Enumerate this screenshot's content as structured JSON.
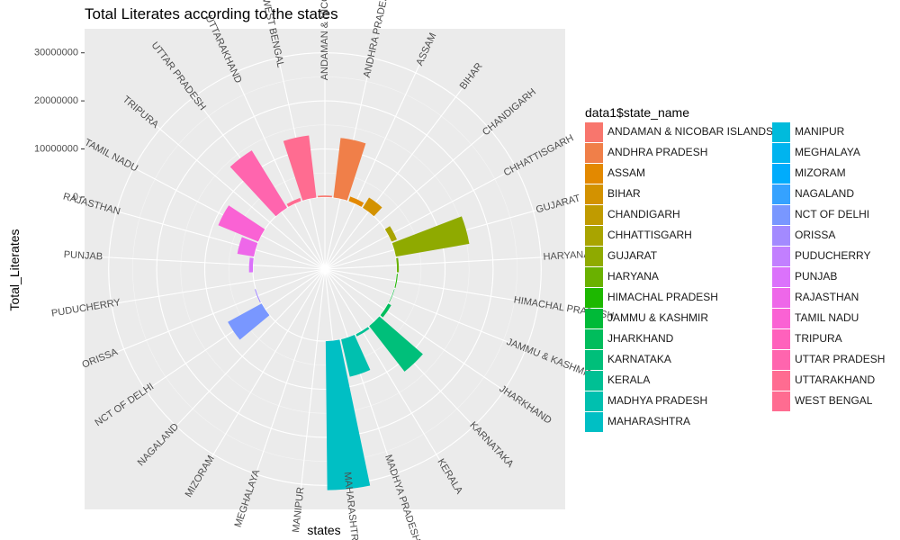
{
  "chart_data": {
    "type": "bar",
    "coord": "polar",
    "title": "Total Literates according to the states",
    "xlabel": "states",
    "ylabel": "Total_Literates",
    "ylim": [
      -15000000,
      35000000
    ],
    "y_ticks": [
      0,
      10000000,
      20000000,
      30000000
    ],
    "y_tick_labels": [
      "0",
      "10000000",
      "20000000",
      "30000000"
    ],
    "categories": [
      "ANDAMAN & NICOBAR ISLANDS",
      "ANDHRA PRADESH",
      "ASSAM",
      "BIHAR",
      "CHANDIGARH",
      "CHHATTISGARH",
      "GUJARAT",
      "HARYANA",
      "HIMACHAL PRADESH",
      "JAMMU & KASHMIR",
      "JHARKHAND",
      "KARNATAKA",
      "KERALA",
      "MADHYA PRADESH",
      "MAHARASHTRA",
      "MANIPUR",
      "MEGHALAYA",
      "MIZORAM",
      "NAGALAND",
      "NCT OF DELHI",
      "ORISSA",
      "PUDUCHERRY",
      "PUNJAB",
      "RAJASTHAN",
      "TAMIL NADU",
      "TRIPURA",
      "UTTAR PRADESH",
      "UTTARAKHAND",
      "WEST BENGAL"
    ],
    "axis_labels": [
      "ANDAMAN & NICOBAR",
      "ANDHRA PRADESH",
      "ASSAM",
      "BIHAR",
      "CHANDIGARH",
      "CHHATTISGARH",
      "GUJARAT",
      "HARYANA",
      "HIMACHAL PRADESH",
      "JAMMU & KASHMIR",
      "JHARKHAND",
      "KARNATAKA",
      "KERALA",
      "MADHYA PRADESH",
      "MAHARASHTRA",
      "MANIPUR",
      "MEGHALAYA",
      "MIZORAM",
      "NAGALAND",
      "NCT OF DELHI",
      "ORISSA",
      "PUDUCHERRY",
      "PUNJAB",
      "RAJASTHAN",
      "TAMIL NADU",
      "TRIPURA",
      "UTTAR PRADESH",
      "UTTARAKHAND",
      "WEST BENGAL"
    ],
    "values": [
      300000,
      12500000,
      1000000,
      2500000,
      0,
      1200000,
      15500000,
      400000,
      200000,
      100000,
      700000,
      12000000,
      500000,
      8000000,
      31000000,
      0,
      0,
      0,
      0,
      8000000,
      200000,
      0,
      800000,
      3500000,
      9000000,
      0,
      14000000,
      700000,
      13000000
    ],
    "colors": [
      "#F8766D",
      "#F07F49",
      "#E38900",
      "#D39200",
      "#C09B00",
      "#A9A400",
      "#8FAA00",
      "#6AB100",
      "#1DB800",
      "#00BA38",
      "#00BD5C",
      "#00BF7A",
      "#00C094",
      "#00C0AF",
      "#00BFC4",
      "#00BBDC",
      "#00B4EF",
      "#00ACFC",
      "#35A2FF",
      "#7997FF",
      "#A38AFF",
      "#C27FFF",
      "#DB72FB",
      "#EE67E9",
      "#FA62D4",
      "#FF61BC",
      "#FF65AE",
      "#FF6C91",
      "#FF6C91"
    ],
    "legend": {
      "title": "data1$state_name",
      "position": "right"
    },
    "grid": true
  }
}
